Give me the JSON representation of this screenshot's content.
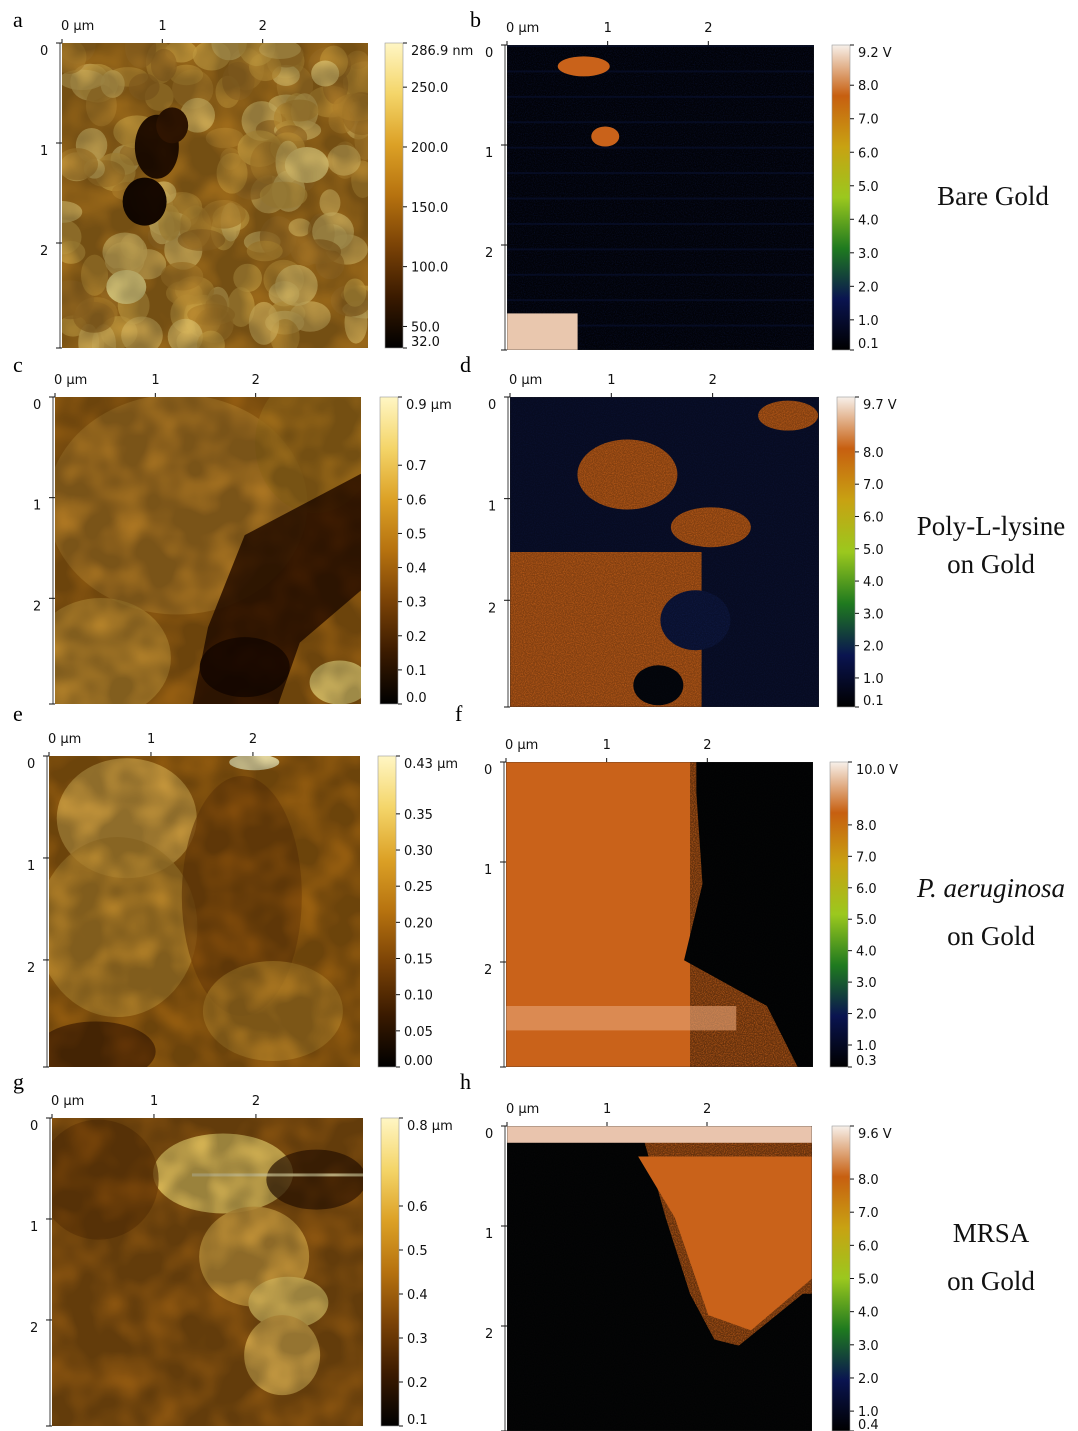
{
  "panels": [
    {
      "letter": "a",
      "kind": "height",
      "xticks": [
        "0 μm",
        "1",
        "2"
      ],
      "yticks": [
        "0",
        "1",
        "2"
      ],
      "scale_labels": [
        "286.9 nm",
        "250.0",
        "200.0",
        "150.0",
        "100.0",
        "50.0",
        "32.0"
      ],
      "scale_values": [
        286.9,
        250.0,
        200.0,
        150.0,
        100.0,
        50.0,
        32.0
      ],
      "scale_min": 32.0,
      "scale_max": 286.9
    },
    {
      "letter": "b",
      "kind": "potential",
      "xticks": [
        "0 μm",
        "1",
        "2"
      ],
      "yticks": [
        "0",
        "1",
        "2"
      ],
      "scale_labels": [
        "9.2 V",
        "8.0",
        "7.0",
        "6.0",
        "5.0",
        "4.0",
        "3.0",
        "2.0",
        "1.0",
        "0.1"
      ],
      "scale_values": [
        9.2,
        8.0,
        7.0,
        6.0,
        5.0,
        4.0,
        3.0,
        2.0,
        1.0,
        0.1
      ],
      "scale_min": 0.1,
      "scale_max": 9.2
    },
    {
      "letter": "c",
      "kind": "height",
      "xticks": [
        "0 μm",
        "1",
        "2"
      ],
      "yticks": [
        "0",
        "1",
        "2"
      ],
      "scale_labels": [
        "0.9 μm",
        "0.7",
        "0.6",
        "0.5",
        "0.4",
        "0.3",
        "0.2",
        "0.1",
        "0.0"
      ],
      "scale_values": [
        0.9,
        0.7,
        0.6,
        0.5,
        0.4,
        0.3,
        0.2,
        0.1,
        0.0
      ],
      "scale_min": 0.0,
      "scale_max": 0.9
    },
    {
      "letter": "d",
      "kind": "potential",
      "xticks": [
        "0 μm",
        "1",
        "2"
      ],
      "yticks": [
        "0",
        "1",
        "2"
      ],
      "scale_labels": [
        "9.7 V",
        "8.0",
        "7.0",
        "6.0",
        "5.0",
        "4.0",
        "3.0",
        "2.0",
        "1.0",
        "0.1"
      ],
      "scale_values": [
        9.7,
        8.0,
        7.0,
        6.0,
        5.0,
        4.0,
        3.0,
        2.0,
        1.0,
        0.1
      ],
      "scale_min": 0.1,
      "scale_max": 9.7
    },
    {
      "letter": "e",
      "kind": "height",
      "xticks": [
        "0 μm",
        "1",
        "2"
      ],
      "yticks": [
        "0",
        "1",
        "2"
      ],
      "scale_labels": [
        "0.43 μm",
        "0.35",
        "0.30",
        "0.25",
        "0.20",
        "0.15",
        "0.10",
        "0.05",
        "0.00"
      ],
      "scale_values": [
        0.43,
        0.35,
        0.3,
        0.25,
        0.2,
        0.15,
        0.1,
        0.05,
        0.0
      ],
      "scale_min": 0.0,
      "scale_max": 0.43
    },
    {
      "letter": "f",
      "kind": "potential",
      "xticks": [
        "0 μm",
        "1",
        "2"
      ],
      "yticks": [
        "0",
        "1",
        "2"
      ],
      "scale_labels": [
        "10.0 V",
        "8.0",
        "7.0",
        "6.0",
        "5.0",
        "4.0",
        "3.0",
        "2.0",
        "1.0",
        "0.3"
      ],
      "scale_values": [
        10.0,
        8.0,
        7.0,
        6.0,
        5.0,
        4.0,
        3.0,
        2.0,
        1.0,
        0.3
      ],
      "scale_min": 0.3,
      "scale_max": 10.0
    },
    {
      "letter": "g",
      "kind": "height",
      "xticks": [
        "0 μm",
        "1",
        "2"
      ],
      "yticks": [
        "0",
        "1",
        "2"
      ],
      "scale_labels": [
        "0.8 μm",
        "0.6",
        "0.5",
        "0.4",
        "0.3",
        "0.2",
        "0.1"
      ],
      "scale_values": [
        0.8,
        0.6,
        0.5,
        0.4,
        0.3,
        0.2,
        0.1
      ],
      "scale_min": 0.1,
      "scale_max": 0.8
    },
    {
      "letter": "h",
      "kind": "potential",
      "xticks": [
        "0 μm",
        "1",
        "2"
      ],
      "yticks": [
        "0",
        "1",
        "2"
      ],
      "scale_labels": [
        "9.6 V",
        "8.0",
        "7.0",
        "6.0",
        "5.0",
        "4.0",
        "3.0",
        "2.0",
        "1.0",
        "0.4"
      ],
      "scale_values": [
        9.6,
        8.0,
        7.0,
        6.0,
        5.0,
        4.0,
        3.0,
        2.0,
        1.0,
        0.4
      ],
      "scale_min": 0.4,
      "scale_max": 9.6
    }
  ],
  "samples": [
    {
      "line1": "Bare Gold",
      "line2": ""
    },
    {
      "line1": "Poly-L-lysine",
      "line2": "on Gold"
    },
    {
      "line1": "P. aeruginosa",
      "line2": "on Gold",
      "line1_italic": true
    },
    {
      "line1": "MRSA",
      "line2": "on Gold"
    }
  ],
  "colors": {
    "height_map": [
      "#000000",
      "#3a1a00",
      "#7a4206",
      "#b6720f",
      "#dca126",
      "#f4d569",
      "#fff6c4"
    ],
    "potential_map": [
      "#000000",
      "#0a1450",
      "#1f7a1f",
      "#9bc81e",
      "#c8a212",
      "#c75f10",
      "#f7f0ea"
    ],
    "text": "#111111"
  }
}
